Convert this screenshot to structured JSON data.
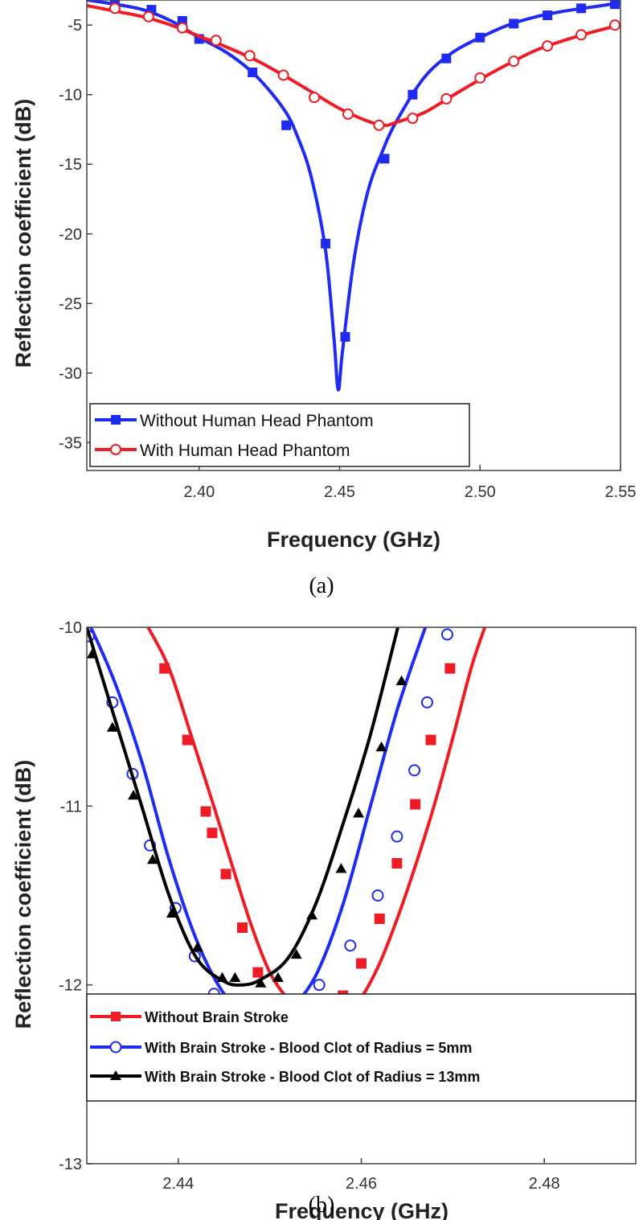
{
  "chart_data": [
    {
      "type": "line",
      "caption": "(a)",
      "xlabel": "Frequency (GHz)",
      "ylabel": "Reflection coefficient (dB)",
      "xlim": [
        2.36,
        2.55
      ],
      "ylim": [
        -37,
        -3.2
      ],
      "xticks": [
        2.4,
        2.45,
        2.5,
        2.55
      ],
      "xtick_labels": [
        "2.40",
        "2.45",
        "2.50",
        "2.55"
      ],
      "yticks": [
        -5,
        -10,
        -15,
        -20,
        -25,
        -30,
        -35
      ],
      "ytick_labels": [
        "-5",
        "-10",
        "-15",
        "-20",
        "-25",
        "-30",
        "-35"
      ],
      "legend_position": "bottom-left",
      "series": [
        {
          "name": "Without Human Head Phantom",
          "color": "#1f2bf0",
          "marker": "filled-square",
          "curve": [
            [
              2.36,
              -3.2
            ],
            [
              2.37,
              -3.5
            ],
            [
              2.38,
              -3.9
            ],
            [
              2.39,
              -4.7
            ],
            [
              2.4,
              -5.9
            ],
            [
              2.41,
              -7.0
            ],
            [
              2.42,
              -8.6
            ],
            [
              2.43,
              -11.0
            ],
            [
              2.435,
              -13.0
            ],
            [
              2.44,
              -16.0
            ],
            [
              2.445,
              -21.2
            ],
            [
              2.448,
              -27.5
            ],
            [
              2.4495,
              -31.2
            ],
            [
              2.451,
              -28.5
            ],
            [
              2.455,
              -22.0
            ],
            [
              2.46,
              -17.0
            ],
            [
              2.465,
              -14.2
            ],
            [
              2.47,
              -12.0
            ],
            [
              2.48,
              -8.8
            ],
            [
              2.49,
              -7.0
            ],
            [
              2.5,
              -5.9
            ],
            [
              2.51,
              -5.0
            ],
            [
              2.52,
              -4.4
            ],
            [
              2.53,
              -4.0
            ],
            [
              2.54,
              -3.7
            ],
            [
              2.55,
              -3.4
            ]
          ],
          "markers": [
            [
              2.37,
              -3.4
            ],
            [
              2.383,
              -3.9
            ],
            [
              2.394,
              -4.7
            ],
            [
              2.4,
              -6.0
            ],
            [
              2.419,
              -8.4
            ],
            [
              2.431,
              -12.2
            ],
            [
              2.445,
              -20.7
            ],
            [
              2.452,
              -27.4
            ],
            [
              2.466,
              -14.6
            ],
            [
              2.476,
              -10.0
            ],
            [
              2.488,
              -7.4
            ],
            [
              2.5,
              -5.9
            ],
            [
              2.512,
              -4.9
            ],
            [
              2.524,
              -4.3
            ],
            [
              2.536,
              -3.8
            ],
            [
              2.548,
              -3.5
            ]
          ]
        },
        {
          "name": "With Human Head Phantom",
          "color": "#ee1c24",
          "marker": "open-circle",
          "curve": [
            [
              2.36,
              -3.6
            ],
            [
              2.37,
              -4.0
            ],
            [
              2.38,
              -4.4
            ],
            [
              2.39,
              -5.0
            ],
            [
              2.4,
              -5.8
            ],
            [
              2.41,
              -6.6
            ],
            [
              2.42,
              -7.5
            ],
            [
              2.43,
              -8.6
            ],
            [
              2.44,
              -9.8
            ],
            [
              2.45,
              -11.0
            ],
            [
              2.46,
              -11.9
            ],
            [
              2.466,
              -12.2
            ],
            [
              2.47,
              -12.0
            ],
            [
              2.48,
              -11.3
            ],
            [
              2.49,
              -10.1
            ],
            [
              2.5,
              -8.9
            ],
            [
              2.51,
              -7.8
            ],
            [
              2.52,
              -6.8
            ],
            [
              2.53,
              -6.1
            ],
            [
              2.54,
              -5.5
            ],
            [
              2.55,
              -5.0
            ]
          ],
          "markers": [
            [
              2.37,
              -3.8
            ],
            [
              2.382,
              -4.4
            ],
            [
              2.394,
              -5.2
            ],
            [
              2.406,
              -6.1
            ],
            [
              2.418,
              -7.2
            ],
            [
              2.43,
              -8.6
            ],
            [
              2.441,
              -10.2
            ],
            [
              2.453,
              -11.4
            ],
            [
              2.464,
              -12.2
            ],
            [
              2.476,
              -11.7
            ],
            [
              2.488,
              -10.3
            ],
            [
              2.5,
              -8.8
            ],
            [
              2.512,
              -7.6
            ],
            [
              2.524,
              -6.5
            ],
            [
              2.536,
              -5.7
            ],
            [
              2.548,
              -5.0
            ]
          ]
        }
      ]
    },
    {
      "type": "line",
      "caption": "(b)",
      "xlabel": "Frequency (GHz)",
      "ylabel": "Reflection coefficient (dB)",
      "xlim": [
        2.43,
        2.49
      ],
      "ylim": [
        -13,
        -10
      ],
      "xticks": [
        2.44,
        2.46,
        2.48
      ],
      "xtick_labels": [
        "2.44",
        "2.46",
        "2.48"
      ],
      "yticks": [
        -10,
        -11,
        -12,
        -13
      ],
      "ytick_labels": [
        "-10",
        "-11",
        "-12",
        "-13"
      ],
      "legend_position": "bottom",
      "series": [
        {
          "name": "Without Brain Stroke",
          "color": "#ee1c24",
          "marker": "filled-square",
          "curve": [
            [
              2.4367,
              -10.0
            ],
            [
              2.439,
              -10.23
            ],
            [
              2.4415,
              -10.62
            ],
            [
              2.444,
              -11.02
            ],
            [
              2.446,
              -11.35
            ],
            [
              2.448,
              -11.67
            ],
            [
              2.45,
              -11.93
            ],
            [
              2.452,
              -12.08
            ],
            [
              2.454,
              -12.18
            ],
            [
              2.456,
              -12.19
            ],
            [
              2.458,
              -12.17
            ],
            [
              2.46,
              -12.07
            ],
            [
              2.462,
              -11.88
            ],
            [
              2.464,
              -11.62
            ],
            [
              2.466,
              -11.32
            ],
            [
              2.468,
              -10.99
            ],
            [
              2.47,
              -10.62
            ],
            [
              2.472,
              -10.23
            ],
            [
              2.4735,
              -10.0
            ]
          ],
          "markers": [
            [
              2.4385,
              -10.23
            ],
            [
              2.441,
              -10.63
            ],
            [
              2.443,
              -11.03
            ],
            [
              2.4437,
              -11.15
            ],
            [
              2.4452,
              -11.38
            ],
            [
              2.447,
              -11.68
            ],
            [
              2.4487,
              -11.93
            ],
            [
              2.451,
              -12.09
            ],
            [
              2.4533,
              -12.18
            ],
            [
              2.4557,
              -12.17
            ],
            [
              2.458,
              -12.06
            ],
            [
              2.46,
              -11.88
            ],
            [
              2.462,
              -11.63
            ],
            [
              2.4639,
              -11.32
            ],
            [
              2.4659,
              -10.99
            ],
            [
              2.4676,
              -10.63
            ],
            [
              2.4697,
              -10.23
            ]
          ]
        },
        {
          "name": "With Brain Stroke - Blood Clot of Radius = 5mm",
          "color": "#1f2bf0",
          "marker": "open-circle",
          "curve": [
            [
              2.43,
              -9.95
            ],
            [
              2.433,
              -10.3
            ],
            [
              2.436,
              -10.75
            ],
            [
              2.439,
              -11.3
            ],
            [
              2.442,
              -11.75
            ],
            [
              2.445,
              -12.05
            ],
            [
              2.448,
              -12.18
            ],
            [
              2.45,
              -12.21
            ],
            [
              2.452,
              -12.15
            ],
            [
              2.455,
              -11.95
            ],
            [
              2.458,
              -11.55
            ],
            [
              2.461,
              -11.0
            ],
            [
              2.464,
              -10.45
            ],
            [
              2.467,
              -10.0
            ]
          ],
          "markers": [
            [
              2.4302,
              -10.05
            ],
            [
              2.4328,
              -10.42
            ],
            [
              2.435,
              -10.82
            ],
            [
              2.4369,
              -11.22
            ],
            [
              2.4397,
              -11.57
            ],
            [
              2.4418,
              -11.84
            ],
            [
              2.4439,
              -12.05
            ],
            [
              2.4449,
              -12.11
            ],
            [
              2.4469,
              -12.18
            ],
            [
              2.4497,
              -12.21
            ],
            [
              2.4529,
              -12.16
            ],
            [
              2.4554,
              -12.0
            ],
            [
              2.4588,
              -11.78
            ],
            [
              2.4618,
              -11.5
            ],
            [
              2.4639,
              -11.17
            ],
            [
              2.4658,
              -10.8
            ],
            [
              2.4672,
              -10.42
            ],
            [
              2.4694,
              -10.04
            ]
          ]
        },
        {
          "name": "With Brain Stroke - Blood Clot of Radius = 13mm",
          "color": "#000000",
          "marker": "filled-triangle",
          "curve": [
            [
              2.43,
              -10.0
            ],
            [
              2.433,
              -10.5
            ],
            [
              2.436,
              -11.0
            ],
            [
              2.439,
              -11.5
            ],
            [
              2.442,
              -11.85
            ],
            [
              2.445,
              -11.98
            ],
            [
              2.447,
              -12.0
            ],
            [
              2.449,
              -11.97
            ],
            [
              2.452,
              -11.85
            ],
            [
              2.455,
              -11.55
            ],
            [
              2.458,
              -11.1
            ],
            [
              2.461,
              -10.6
            ],
            [
              2.464,
              -10.0
            ]
          ],
          "markers": [
            [
              2.4306,
              -10.15
            ],
            [
              2.4328,
              -10.56
            ],
            [
              2.4351,
              -10.94
            ],
            [
              2.4372,
              -11.3
            ],
            [
              2.4393,
              -11.6
            ],
            [
              2.4421,
              -11.79
            ],
            [
              2.4448,
              -11.96
            ],
            [
              2.4462,
              -11.96
            ],
            [
              2.449,
              -11.99
            ],
            [
              2.4509,
              -11.96
            ],
            [
              2.4529,
              -11.83
            ],
            [
              2.4546,
              -11.61
            ],
            [
              2.4578,
              -11.35
            ],
            [
              2.4597,
              -11.04
            ],
            [
              2.4622,
              -10.67
            ],
            [
              2.4644,
              -10.3
            ]
          ]
        }
      ]
    }
  ]
}
